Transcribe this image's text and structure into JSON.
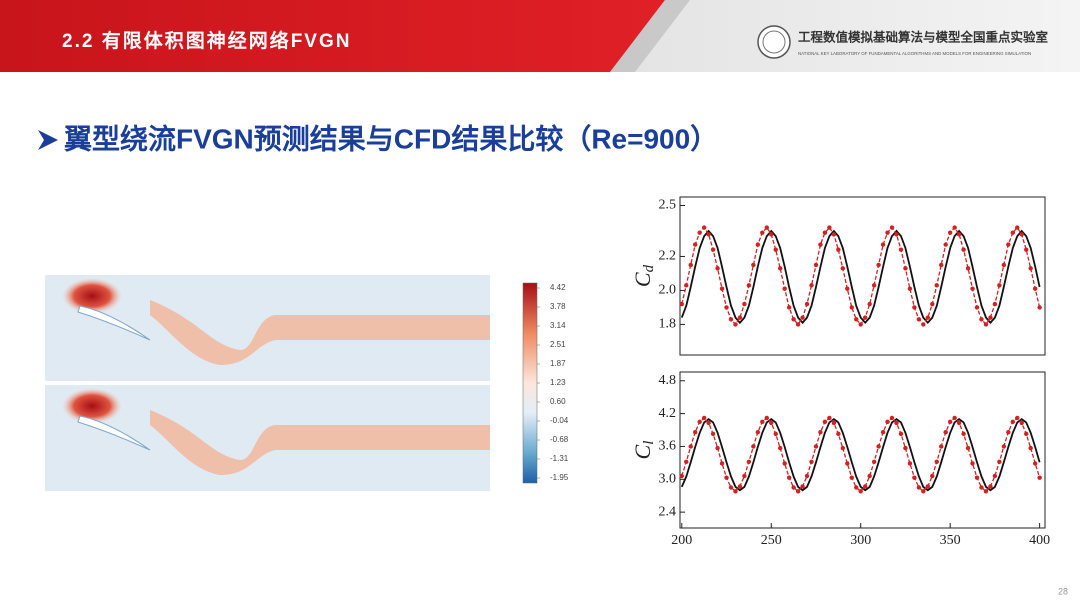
{
  "header": {
    "title": "2.2 有限体积图神经网络FVGN",
    "lab_name": "工程数值模拟基础算法与模型全国重点实验室",
    "lab_name_en": "NATIONAL KEY LABORATORY OF FUNDAMENTAL ALGORITHMS AND MODELS FOR ENGINEERING SIMULATION"
  },
  "heading": "翼型绕流FVGN预测结果与CFD结果比较（Re=900）",
  "colorbar": {
    "ticks": [
      "4.42",
      "3.78",
      "3.14",
      "2.51",
      "1.87",
      "1.23",
      "0.60",
      "-0.04",
      "-0.68",
      "-1.31",
      "-1.95"
    ]
  },
  "page_number": "28",
  "chart_data": [
    {
      "type": "line",
      "ylabel": "C",
      "ylabel_sub": "d",
      "x": [
        200,
        202.5,
        205,
        207.5,
        210,
        212.5,
        215,
        217.5,
        220,
        222.5,
        225,
        227.5,
        230,
        232.5,
        235,
        237.5,
        240,
        242.5,
        245,
        247.5,
        250,
        252.5,
        255,
        257.5,
        260,
        262.5,
        265,
        267.5,
        270,
        272.5,
        275,
        277.5,
        280,
        282.5,
        285,
        287.5,
        290,
        292.5,
        295,
        297.5,
        300,
        302.5,
        305,
        307.5,
        310,
        312.5,
        315,
        317.5,
        320,
        322.5,
        325,
        327.5,
        330,
        332.5,
        335,
        337.5,
        340,
        342.5,
        345,
        347.5,
        350,
        352.5,
        355,
        357.5,
        360,
        362.5,
        365,
        367.5,
        370,
        372.5,
        375,
        377.5,
        380,
        382.5,
        385,
        387.5,
        390,
        392.5,
        395,
        397.5,
        400
      ],
      "xlim": [
        199,
        403
      ],
      "ylim": [
        1.62,
        2.55
      ],
      "yticks": [
        1.8,
        {
          "value": 2.0,
          "label": "2.0"
        },
        2.2,
        2.5
      ],
      "series": [
        {
          "color": "#111111",
          "linestyle": "solid",
          "values": [
            1.84,
            1.91,
            2.02,
            2.14,
            2.25,
            2.32,
            2.35,
            2.32,
            2.25,
            2.14,
            2.02,
            1.91,
            1.84,
            1.81,
            1.84,
            1.91,
            2.02,
            2.14,
            2.25,
            2.32,
            2.35,
            2.32,
            2.25,
            2.14,
            2.02,
            1.91,
            1.84,
            1.81,
            1.84,
            1.91,
            2.02,
            2.14,
            2.25,
            2.32,
            2.35,
            2.32,
            2.25,
            2.14,
            2.02,
            1.91,
            1.84,
            1.81,
            1.84,
            1.91,
            2.02,
            2.14,
            2.25,
            2.32,
            2.35,
            2.32,
            2.25,
            2.14,
            2.02,
            1.91,
            1.84,
            1.81,
            1.84,
            1.91,
            2.02,
            2.14,
            2.25,
            2.32,
            2.35,
            2.32,
            2.25,
            2.14,
            2.02,
            1.91,
            1.84,
            1.81,
            1.84,
            1.91,
            2.02,
            2.14,
            2.25,
            2.32,
            2.35,
            2.32,
            2.25,
            2.14,
            2.02
          ]
        },
        {
          "color": "#d42020",
          "linestyle": "dashed",
          "marker": "circle",
          "values": [
            1.92,
            2.03,
            2.15,
            2.27,
            2.34,
            2.37,
            2.33,
            2.24,
            2.13,
            2.01,
            1.9,
            1.83,
            1.8,
            1.84,
            1.92,
            2.03,
            2.15,
            2.27,
            2.34,
            2.37,
            2.33,
            2.24,
            2.13,
            2.01,
            1.9,
            1.83,
            1.8,
            1.84,
            1.92,
            2.03,
            2.15,
            2.27,
            2.34,
            2.37,
            2.33,
            2.24,
            2.13,
            2.01,
            1.9,
            1.83,
            1.8,
            1.84,
            1.92,
            2.03,
            2.15,
            2.27,
            2.34,
            2.37,
            2.33,
            2.24,
            2.13,
            2.01,
            1.9,
            1.83,
            1.8,
            1.84,
            1.92,
            2.03,
            2.15,
            2.27,
            2.34,
            2.37,
            2.33,
            2.24,
            2.13,
            2.01,
            1.9,
            1.83,
            1.8,
            1.84,
            1.92,
            2.03,
            2.15,
            2.27,
            2.34,
            2.37,
            2.33,
            2.24,
            2.13,
            2.01,
            1.9
          ]
        }
      ]
    },
    {
      "type": "line",
      "ylabel": "C",
      "ylabel_sub": "l",
      "x": [
        200,
        202.5,
        205,
        207.5,
        210,
        212.5,
        215,
        217.5,
        220,
        222.5,
        225,
        227.5,
        230,
        232.5,
        235,
        237.5,
        240,
        242.5,
        245,
        247.5,
        250,
        252.5,
        255,
        257.5,
        260,
        262.5,
        265,
        267.5,
        270,
        272.5,
        275,
        277.5,
        280,
        282.5,
        285,
        287.5,
        290,
        292.5,
        295,
        297.5,
        300,
        302.5,
        305,
        307.5,
        310,
        312.5,
        315,
        317.5,
        320,
        322.5,
        325,
        327.5,
        330,
        332.5,
        335,
        337.5,
        340,
        342.5,
        345,
        347.5,
        350,
        352.5,
        355,
        357.5,
        360,
        362.5,
        365,
        367.5,
        370,
        372.5,
        375,
        377.5,
        380,
        382.5,
        385,
        387.5,
        390,
        392.5,
        395,
        397.5,
        400
      ],
      "xlim": [
        199,
        403
      ],
      "ylim": [
        2.11,
        4.96
      ],
      "xticks": [
        200,
        250,
        300,
        350,
        400
      ],
      "yticks": [
        2.4,
        {
          "value": 3.0,
          "label": "3.0"
        },
        3.6,
        4.2,
        4.8
      ],
      "series": [
        {
          "color": "#111111",
          "linestyle": "solid",
          "values": [
            2.86,
            3.05,
            3.31,
            3.59,
            3.85,
            4.04,
            4.1,
            4.04,
            3.85,
            3.59,
            3.31,
            3.05,
            2.86,
            2.8,
            2.86,
            3.05,
            3.31,
            3.59,
            3.85,
            4.04,
            4.1,
            4.04,
            3.85,
            3.59,
            3.31,
            3.05,
            2.86,
            2.8,
            2.86,
            3.05,
            3.31,
            3.59,
            3.85,
            4.04,
            4.1,
            4.04,
            3.85,
            3.59,
            3.31,
            3.05,
            2.86,
            2.8,
            2.86,
            3.05,
            3.31,
            3.59,
            3.85,
            4.04,
            4.1,
            4.04,
            3.85,
            3.59,
            3.31,
            3.05,
            2.86,
            2.8,
            2.86,
            3.05,
            3.31,
            3.59,
            3.85,
            4.04,
            4.1,
            4.04,
            3.85,
            3.59,
            3.31,
            3.05,
            2.86,
            2.8,
            2.86,
            3.05,
            3.31,
            3.59,
            3.85,
            4.04,
            4.1,
            4.04,
            3.85,
            3.59,
            3.31
          ]
        },
        {
          "color": "#d42020",
          "linestyle": "dashed",
          "marker": "circle",
          "values": [
            3.06,
            3.32,
            3.6,
            3.86,
            4.05,
            4.12,
            4.03,
            3.83,
            3.57,
            3.29,
            3.03,
            2.85,
            2.78,
            2.87,
            3.06,
            3.32,
            3.6,
            3.86,
            4.05,
            4.12,
            4.03,
            3.83,
            3.57,
            3.29,
            3.03,
            2.85,
            2.78,
            2.87,
            3.06,
            3.32,
            3.6,
            3.86,
            4.05,
            4.12,
            4.03,
            3.83,
            3.57,
            3.29,
            3.03,
            2.85,
            2.78,
            2.87,
            3.06,
            3.32,
            3.6,
            3.86,
            4.05,
            4.12,
            4.03,
            3.83,
            3.57,
            3.29,
            3.03,
            2.85,
            2.78,
            2.87,
            3.06,
            3.32,
            3.6,
            3.86,
            4.05,
            4.12,
            4.03,
            3.83,
            3.57,
            3.29,
            3.03,
            2.85,
            2.78,
            2.87,
            3.06,
            3.32,
            3.6,
            3.86,
            4.05,
            4.12,
            4.03,
            3.83,
            3.57,
            3.29,
            3.03
          ]
        }
      ]
    }
  ]
}
